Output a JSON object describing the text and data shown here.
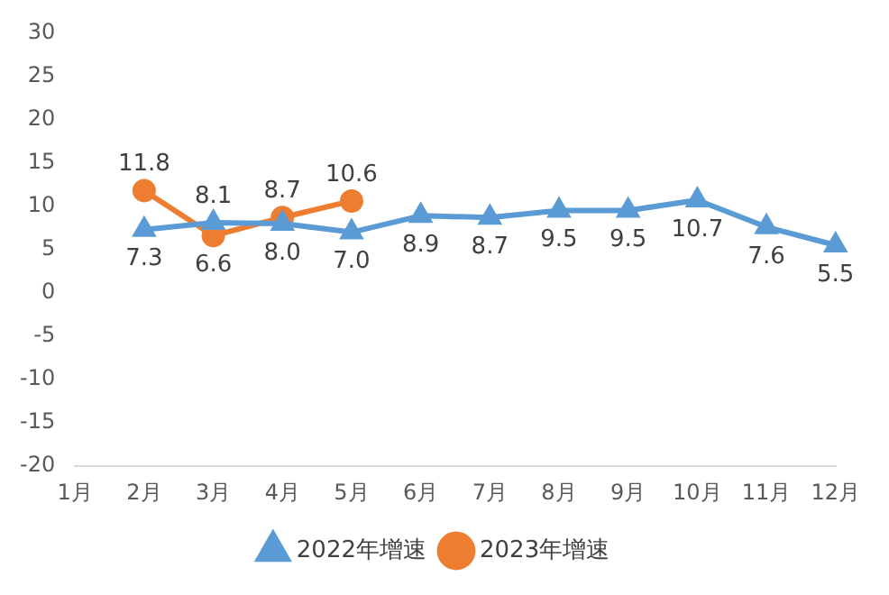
{
  "chart_data": {
    "type": "line",
    "categories": [
      "1月",
      "2月",
      "3月",
      "4月",
      "5月",
      "6月",
      "7月",
      "8月",
      "9月",
      "10月",
      "11月",
      "12月"
    ],
    "series": [
      {
        "name": "2022年增速",
        "color": "#5b9bd5",
        "marker": "triangle",
        "values": [
          null,
          7.3,
          8.1,
          8.0,
          7.0,
          8.9,
          8.7,
          9.5,
          9.5,
          10.7,
          7.6,
          5.5
        ],
        "value_labels": [
          null,
          "7.3",
          "8.1",
          "8.0",
          "7.0",
          "8.9",
          "8.7",
          "9.5",
          "9.5",
          "10.7",
          "7.6",
          "5.5"
        ]
      },
      {
        "name": "2023年增速",
        "color": "#ed7d31",
        "marker": "circle",
        "values": [
          null,
          11.8,
          6.6,
          8.7,
          10.6,
          null,
          null,
          null,
          null,
          null,
          null,
          null
        ],
        "value_labels": [
          null,
          "11.8",
          "6.6",
          "8.7",
          "10.6",
          null,
          null,
          null,
          null,
          null,
          null,
          null
        ]
      }
    ],
    "ylim": [
      -20,
      30
    ],
    "yticks": [
      -20,
      -15,
      -10,
      -5,
      0,
      5,
      10,
      15,
      20,
      25,
      30
    ],
    "grid": false,
    "legend": "bottom",
    "line_style": "solid"
  }
}
